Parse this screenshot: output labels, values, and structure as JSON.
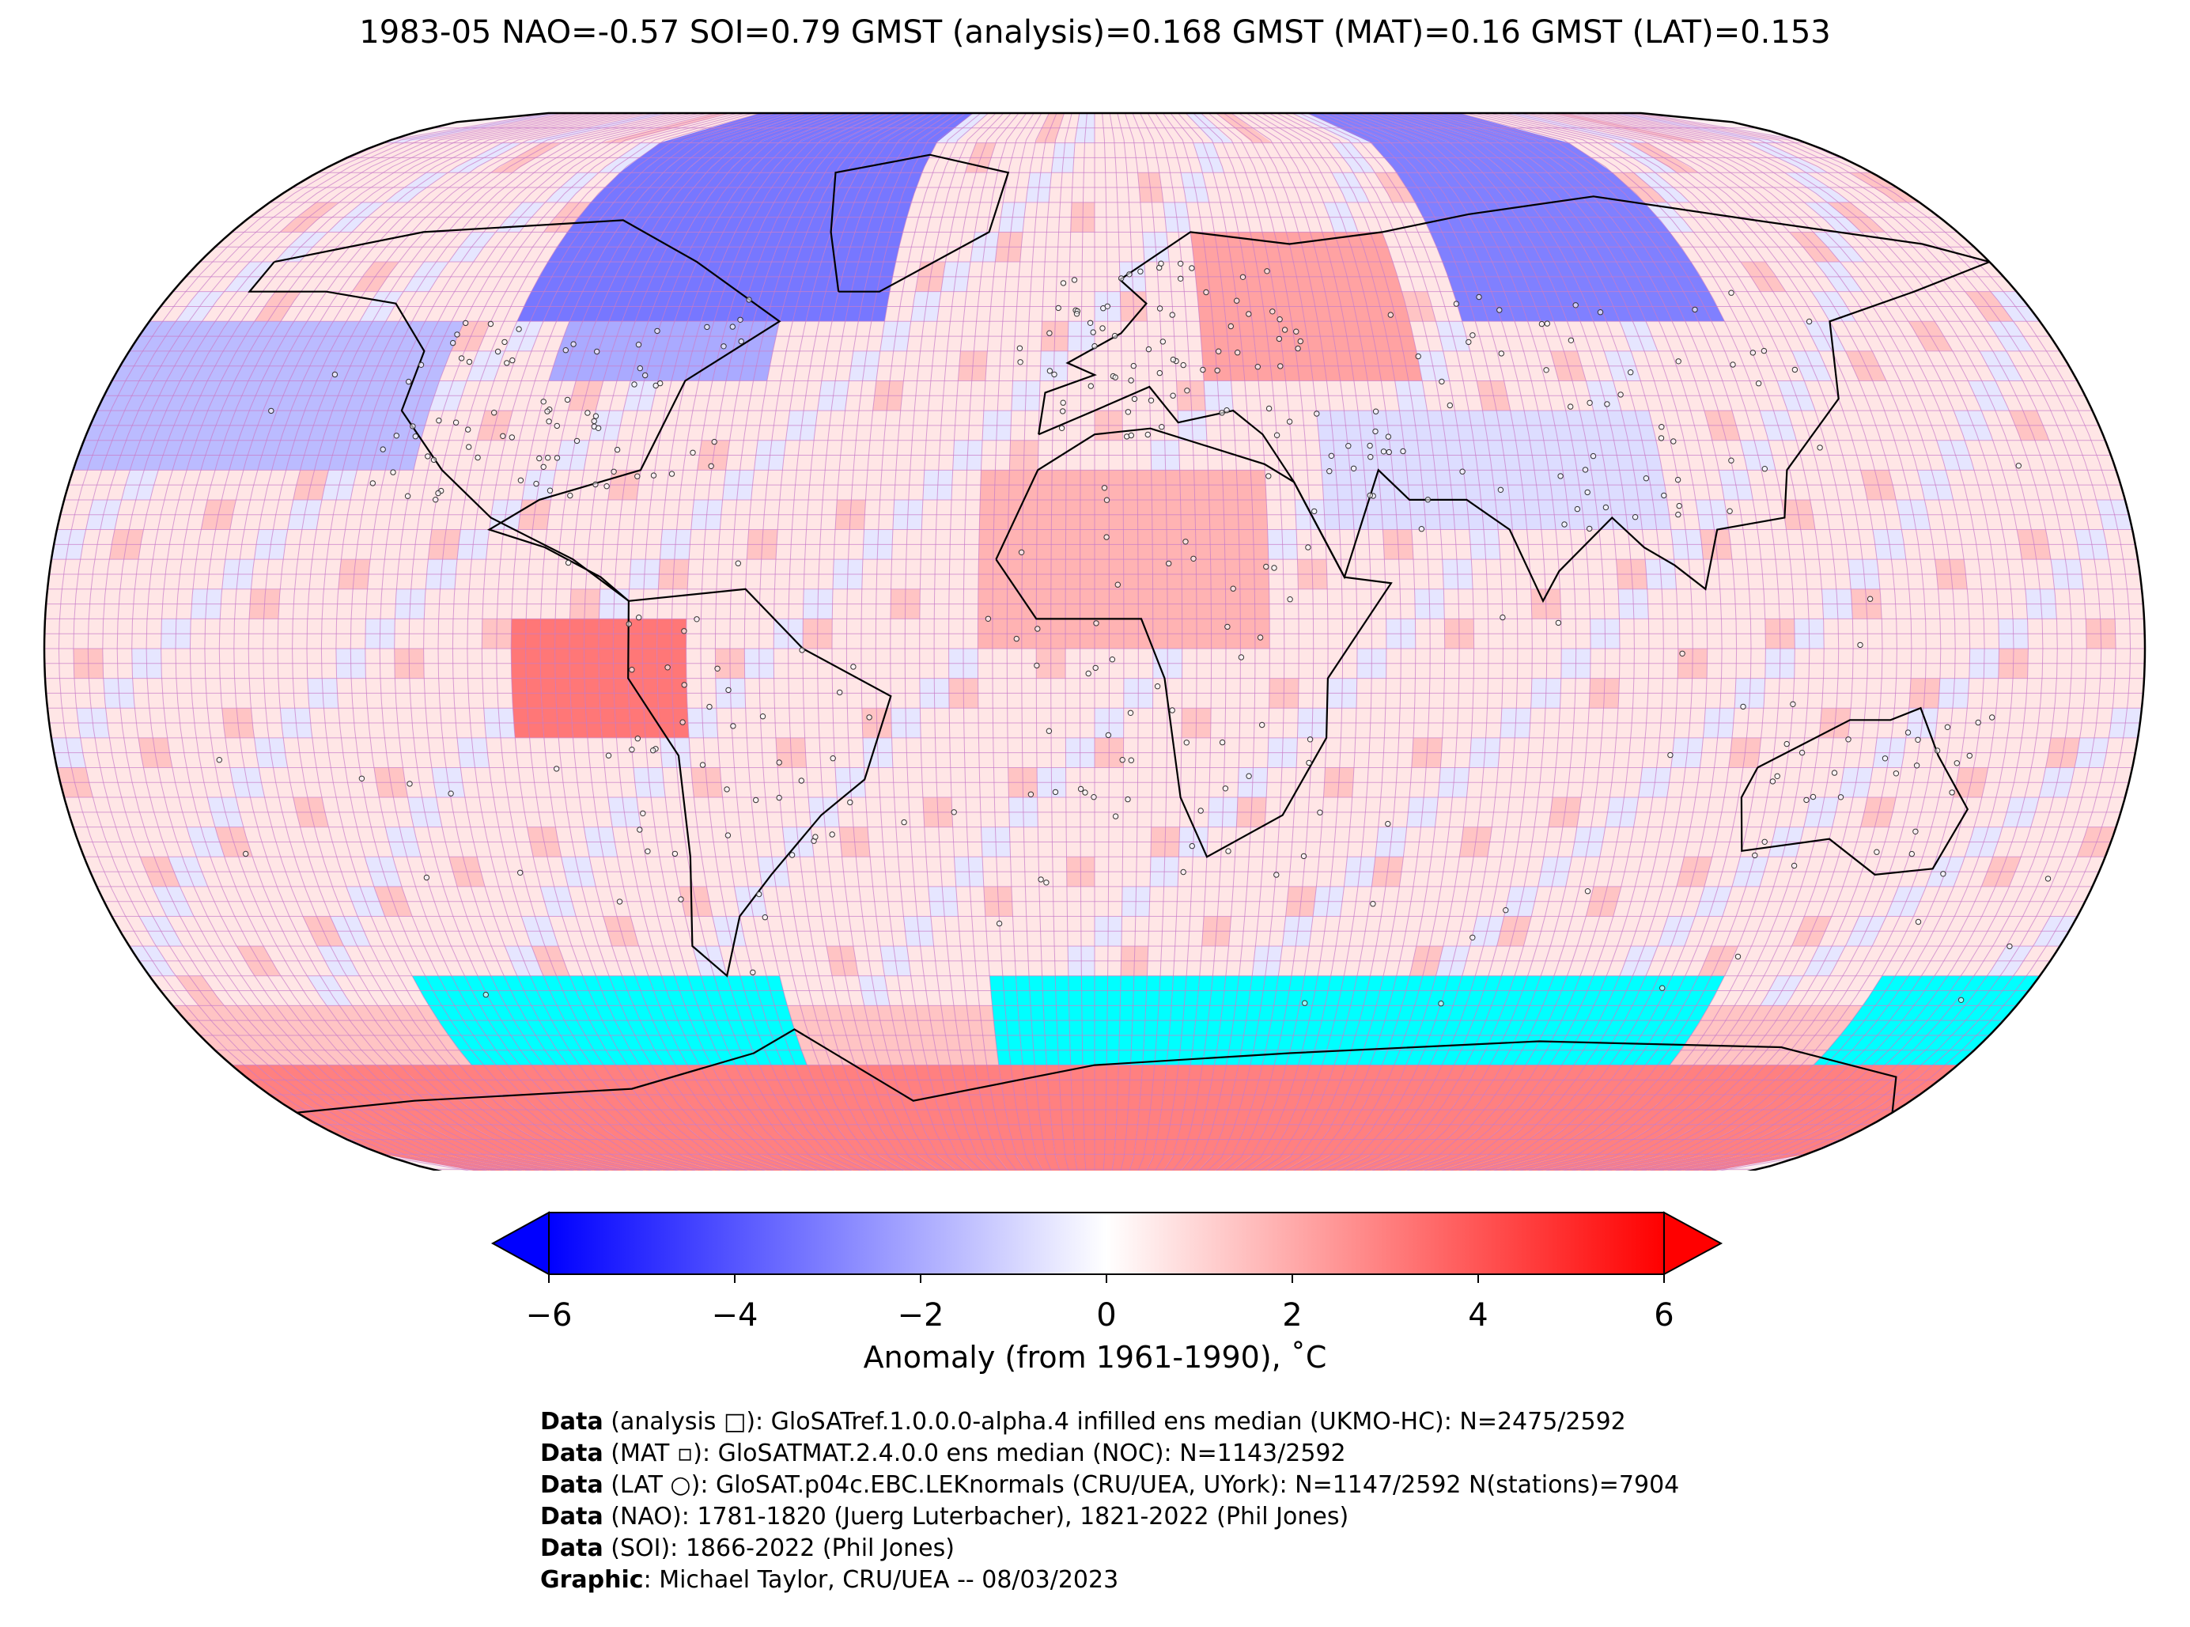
{
  "title": "1983-05 NAO=-0.57 SOI=0.79 GMST (analysis)=0.168 GMST (MAT)=0.16 GMST (LAT)=0.153",
  "map": {
    "projection": "Robinson",
    "colormap": "bwr",
    "sea_ice_color": "#00ffff",
    "coastline_color": "#000000",
    "gridline_color": "#c77bc7"
  },
  "colorbar": {
    "min": -6,
    "max": 6,
    "ticks": [
      "−6",
      "−4",
      "−2",
      "0",
      "2",
      "4",
      "6"
    ],
    "tick_values": [
      -6,
      -4,
      -2,
      0,
      2,
      4,
      6
    ],
    "extend": "both",
    "label": "Anomaly (from 1961-1990), ˚C"
  },
  "credits": [
    {
      "bold": "Data",
      "text": " (analysis □): GloSATref.1.0.0.0-alpha.4 infilled ens median (UKMO-HC): N=2475/2592"
    },
    {
      "bold": "Data",
      "text": " (MAT ▫): GloSATMAT.2.4.0.0 ens median (NOC): N=1143/2592"
    },
    {
      "bold": "Data",
      "text": " (LAT ○): GloSAT.p04c.EBC.LEKnormals (CRU/UEA, UYork): N=1147/2592 N(stations)=7904"
    },
    {
      "bold": "Data",
      "text": " (NAO): 1781-1820 (Juerg Luterbacher), 1821-2022 (Phil Jones)"
    },
    {
      "bold": "Data",
      "text": " (SOI): 1866-2022 (Phil Jones)"
    },
    {
      "bold": "Graphic",
      "text": ": Michael Taylor, CRU/UEA -- 08/03/2023"
    }
  ]
}
